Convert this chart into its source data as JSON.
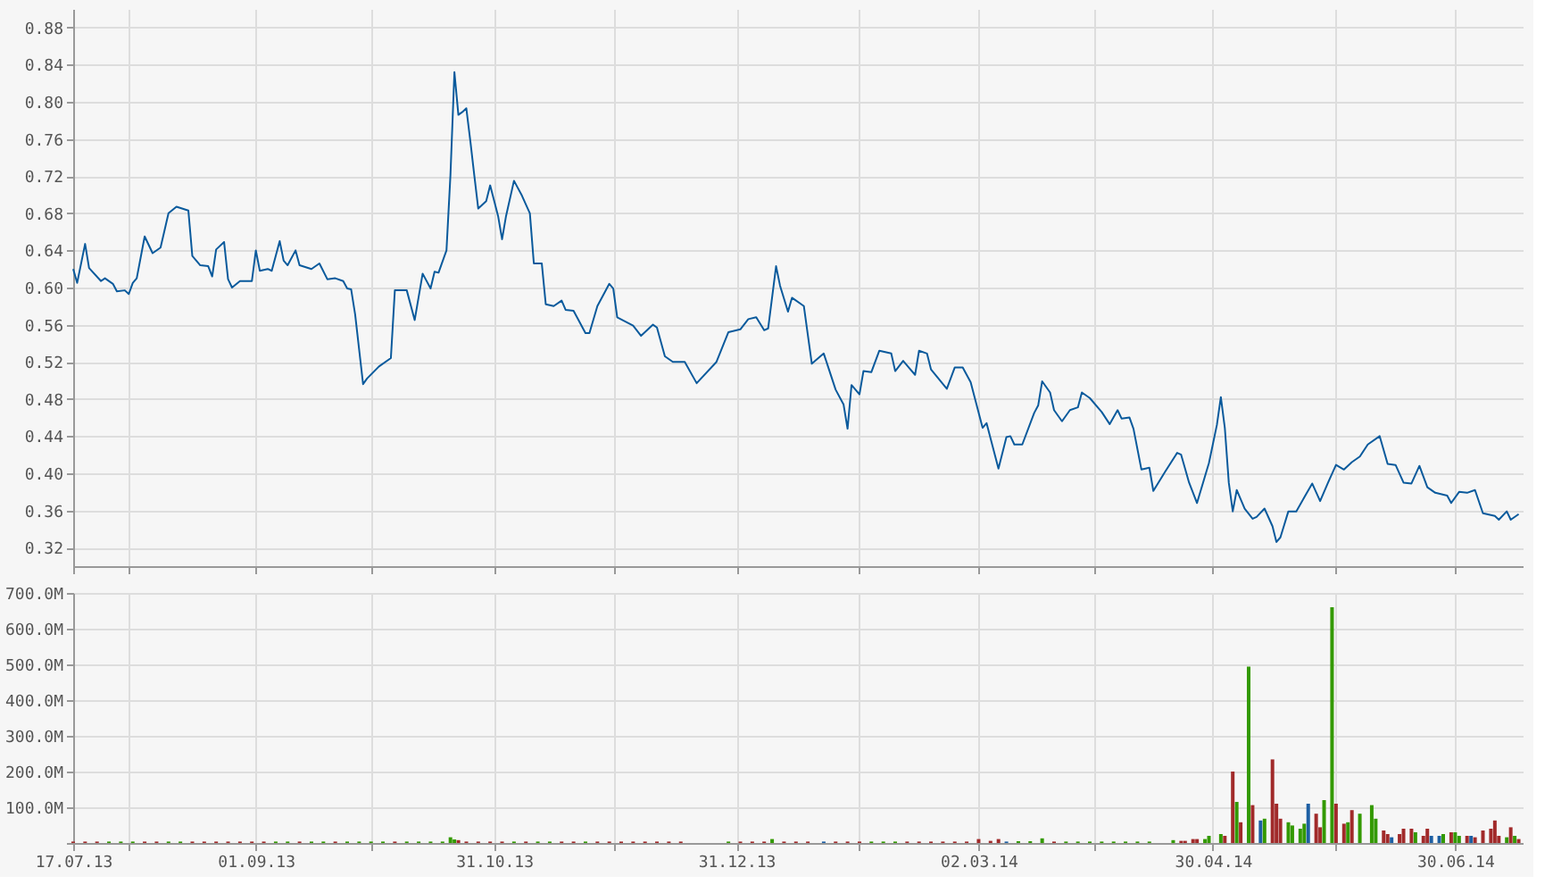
{
  "chart_data": [
    {
      "type": "line",
      "color": "#0a5a9c",
      "x": [
        "2013-07-17",
        "2013-07-18",
        "2013-07-20",
        "2013-07-21",
        "2013-07-24",
        "2013-07-25",
        "2013-07-27",
        "2013-07-28",
        "2013-07-30",
        "2013-07-31",
        "2013-08-01",
        "2013-08-02",
        "2013-08-04",
        "2013-08-06",
        "2013-08-08",
        "2013-08-10",
        "2013-08-12",
        "2013-08-15",
        "2013-08-16",
        "2013-08-18",
        "2013-08-20",
        "2013-08-21",
        "2013-08-22",
        "2013-08-24",
        "2013-08-25",
        "2013-08-26",
        "2013-08-28",
        "2013-08-31",
        "2013-09-01",
        "2013-09-02",
        "2013-09-04",
        "2013-09-05",
        "2013-09-07",
        "2013-09-08",
        "2013-09-09",
        "2013-09-11",
        "2013-09-12",
        "2013-09-15",
        "2013-09-17",
        "2013-09-19",
        "2013-09-21",
        "2013-09-23",
        "2013-09-24",
        "2013-09-25",
        "2013-09-26",
        "2013-09-28",
        "2013-09-29",
        "2013-10-02",
        "2013-10-05",
        "2013-10-06",
        "2013-10-09",
        "2013-10-11",
        "2013-10-13",
        "2013-10-15",
        "2013-10-16",
        "2013-10-17",
        "2013-10-19",
        "2013-10-20",
        "2013-10-21",
        "2013-10-22",
        "2013-10-23",
        "2013-10-24",
        "2013-10-25",
        "2013-10-26",
        "2013-10-27",
        "2013-10-29",
        "2013-10-30",
        "2013-11-01",
        "2013-11-02",
        "2013-11-03",
        "2013-11-05",
        "2013-11-07",
        "2013-11-09",
        "2013-11-10",
        "2013-11-12",
        "2013-11-13",
        "2013-11-15",
        "2013-11-17",
        "2013-11-18",
        "2013-11-20",
        "2013-11-23",
        "2013-11-24",
        "2013-11-26",
        "2013-11-29",
        "2013-11-30",
        "2013-12-01",
        "2013-12-05",
        "2013-12-07",
        "2013-12-10",
        "2013-12-11",
        "2013-12-13",
        "2013-12-15",
        "2013-12-18",
        "2013-12-21",
        "2013-12-26",
        "2013-12-29",
        "2014-01-01",
        "2014-01-03",
        "2014-01-05",
        "2014-01-07",
        "2014-01-08",
        "2014-01-10",
        "2014-01-11",
        "2014-01-13",
        "2014-01-14",
        "2014-01-17",
        "2014-01-19",
        "2014-01-22",
        "2014-01-25",
        "2014-01-27",
        "2014-01-28",
        "2014-01-29",
        "2014-01-31",
        "2014-02-01",
        "2014-02-03",
        "2014-02-05",
        "2014-02-08",
        "2014-02-09",
        "2014-02-11",
        "2014-02-14",
        "2014-02-15",
        "2014-02-17",
        "2014-02-18",
        "2014-02-22",
        "2014-02-24",
        "2014-02-26",
        "2014-02-28",
        "2014-03-03",
        "2014-03-04",
        "2014-03-07",
        "2014-03-09",
        "2014-03-10",
        "2014-03-11",
        "2014-03-13",
        "2014-03-16",
        "2014-03-17",
        "2014-03-18",
        "2014-03-20",
        "2014-03-21",
        "2014-03-23",
        "2014-03-25",
        "2014-03-27",
        "2014-03-28",
        "2014-03-30",
        "2014-04-02",
        "2014-04-04",
        "2014-04-06",
        "2014-04-07",
        "2014-04-09",
        "2014-04-10",
        "2014-04-12",
        "2014-04-14",
        "2014-04-15",
        "2014-04-18",
        "2014-04-21",
        "2014-04-22",
        "2014-04-24",
        "2014-04-26",
        "2014-04-29",
        "2014-05-01",
        "2014-05-02",
        "2014-05-03",
        "2014-05-04",
        "2014-05-05",
        "2014-05-06",
        "2014-05-08",
        "2014-05-10",
        "2014-05-11",
        "2014-05-13",
        "2014-05-15",
        "2014-05-16",
        "2014-05-17",
        "2014-05-19",
        "2014-05-21",
        "2014-05-23",
        "2014-05-25",
        "2014-05-27",
        "2014-05-29",
        "2014-05-31",
        "2014-06-02",
        "2014-06-04",
        "2014-06-06",
        "2014-06-08",
        "2014-06-11",
        "2014-06-13",
        "2014-06-15",
        "2014-06-17",
        "2014-06-19",
        "2014-06-21",
        "2014-06-23",
        "2014-06-25",
        "2014-06-28",
        "2014-06-29",
        "2014-07-01",
        "2014-07-03",
        "2014-07-05",
        "2014-07-07",
        "2014-07-10",
        "2014-07-11",
        "2014-07-13",
        "2014-07-14",
        "2014-07-16"
      ],
      "values": [
        0.62,
        0.605,
        0.647,
        0.621,
        0.607,
        0.61,
        0.604,
        0.596,
        0.597,
        0.593,
        0.605,
        0.61,
        0.655,
        0.637,
        0.643,
        0.68,
        0.687,
        0.683,
        0.634,
        0.624,
        0.623,
        0.612,
        0.641,
        0.649,
        0.609,
        0.6,
        0.607,
        0.607,
        0.64,
        0.618,
        0.62,
        0.618,
        0.65,
        0.629,
        0.624,
        0.64,
        0.624,
        0.62,
        0.626,
        0.609,
        0.61,
        0.607,
        0.599,
        0.598,
        0.571,
        0.496,
        0.502,
        0.515,
        0.524,
        0.597,
        0.597,
        0.565,
        0.615,
        0.599,
        0.617,
        0.616,
        0.64,
        0.721,
        0.832,
        0.786,
        0.789,
        0.793,
        0.758,
        0.721,
        0.685,
        0.693,
        0.71,
        0.677,
        0.652,
        0.677,
        0.715,
        0.699,
        0.68,
        0.626,
        0.626,
        0.582,
        0.58,
        0.586,
        0.576,
        0.575,
        0.551,
        0.551,
        0.58,
        0.604,
        0.599,
        0.568,
        0.559,
        0.548,
        0.56,
        0.557,
        0.526,
        0.52,
        0.52,
        0.497,
        0.52,
        0.552,
        0.555,
        0.566,
        0.568,
        0.554,
        0.556,
        0.623,
        0.602,
        0.574,
        0.589,
        0.58,
        0.518,
        0.529,
        0.49,
        0.474,
        0.448,
        0.495,
        0.485,
        0.51,
        0.509,
        0.532,
        0.529,
        0.51,
        0.521,
        0.506,
        0.532,
        0.529,
        0.512,
        0.491,
        0.514,
        0.514,
        0.498,
        0.449,
        0.454,
        0.405,
        0.439,
        0.44,
        0.431,
        0.431,
        0.465,
        0.473,
        0.499,
        0.487,
        0.468,
        0.456,
        0.468,
        0.471,
        0.487,
        0.481,
        0.466,
        0.453,
        0.468,
        0.459,
        0.46,
        0.448,
        0.404,
        0.406,
        0.381,
        0.402,
        0.422,
        0.42,
        0.39,
        0.368,
        0.411,
        0.452,
        0.482,
        0.449,
        0.39,
        0.359,
        0.382,
        0.362,
        0.351,
        0.353,
        0.362,
        0.343,
        0.326,
        0.331,
        0.359,
        0.359,
        0.374,
        0.389,
        0.37,
        0.39,
        0.409,
        0.404,
        0.412,
        0.418,
        0.431,
        0.44,
        0.41,
        0.409,
        0.39,
        0.389,
        0.408,
        0.385,
        0.379,
        0.376,
        0.368,
        0.38,
        0.379,
        0.382,
        0.357,
        0.354,
        0.35,
        0.359,
        0.35,
        0.356
      ],
      "xlim": [
        "2013-07-17",
        "2014-07-17"
      ],
      "xticks": [
        {
          "value": "2013-07-17",
          "label": null
        },
        {
          "value": "2013-07-31",
          "label": null
        },
        {
          "value": "2013-09-01",
          "label": null
        },
        {
          "value": "2013-09-30",
          "label": null
        },
        {
          "value": "2013-10-31",
          "label": null
        },
        {
          "value": "2013-11-30",
          "label": null
        },
        {
          "value": "2013-12-31",
          "label": null
        },
        {
          "value": "2014-01-31",
          "label": null
        },
        {
          "value": "2014-03-02",
          "label": null
        },
        {
          "value": "2014-03-31",
          "label": null
        },
        {
          "value": "2014-04-30",
          "label": null
        },
        {
          "value": "2014-05-31",
          "label": null
        },
        {
          "value": "2014-06-30",
          "label": null
        }
      ],
      "ylim": [
        0.3,
        0.9
      ],
      "yticks": [
        {
          "value": 0.32,
          "label": "0.32"
        },
        {
          "value": 0.36,
          "label": "0.36"
        },
        {
          "value": 0.4,
          "label": "0.40"
        },
        {
          "value": 0.44,
          "label": "0.44"
        },
        {
          "value": 0.48,
          "label": "0.48"
        },
        {
          "value": 0.52,
          "label": "0.52"
        },
        {
          "value": 0.56,
          "label": "0.56"
        },
        {
          "value": 0.6,
          "label": "0.60"
        },
        {
          "value": 0.64,
          "label": "0.64"
        },
        {
          "value": 0.68,
          "label": "0.68"
        },
        {
          "value": 0.72,
          "label": "0.72"
        },
        {
          "value": 0.76,
          "label": "0.76"
        },
        {
          "value": 0.8,
          "label": "0.80"
        },
        {
          "value": 0.84,
          "label": "0.84"
        },
        {
          "value": 0.88,
          "label": "0.88"
        }
      ],
      "tick_labels": "y",
      "grid": true
    },
    {
      "type": "bar",
      "x": [
        "2013-07-17",
        "2013-07-20",
        "2013-07-23",
        "2013-07-26",
        "2013-07-29",
        "2013-08-01",
        "2013-08-04",
        "2013-08-07",
        "2013-08-10",
        "2013-08-13",
        "2013-08-16",
        "2013-08-19",
        "2013-08-22",
        "2013-08-25",
        "2013-08-28",
        "2013-08-31",
        "2013-09-03",
        "2013-09-06",
        "2013-09-09",
        "2013-09-12",
        "2013-09-15",
        "2013-09-18",
        "2013-09-21",
        "2013-09-24",
        "2013-09-27",
        "2013-09-30",
        "2013-10-03",
        "2013-10-06",
        "2013-10-09",
        "2013-10-12",
        "2013-10-15",
        "2013-10-18",
        "2013-10-20",
        "2013-10-21",
        "2013-10-22",
        "2013-10-24",
        "2013-10-27",
        "2013-10-30",
        "2013-11-02",
        "2013-11-05",
        "2013-11-08",
        "2013-11-11",
        "2013-11-14",
        "2013-11-17",
        "2013-11-20",
        "2013-11-23",
        "2013-11-26",
        "2013-11-29",
        "2013-12-02",
        "2013-12-05",
        "2013-12-08",
        "2013-12-11",
        "2013-12-14",
        "2013-12-17",
        "2013-12-29",
        "2014-01-01",
        "2014-01-04",
        "2014-01-07",
        "2014-01-09",
        "2014-01-12",
        "2014-01-15",
        "2014-01-18",
        "2014-01-22",
        "2014-01-25",
        "2014-01-28",
        "2014-01-31",
        "2014-02-03",
        "2014-02-06",
        "2014-02-09",
        "2014-02-12",
        "2014-02-15",
        "2014-02-18",
        "2014-02-21",
        "2014-02-24",
        "2014-02-27",
        "2014-03-02",
        "2014-03-05",
        "2014-03-07",
        "2014-03-09",
        "2014-03-12",
        "2014-03-15",
        "2014-03-18",
        "2014-03-21",
        "2014-03-24",
        "2014-03-27",
        "2014-03-30",
        "2014-04-02",
        "2014-04-05",
        "2014-04-08",
        "2014-04-11",
        "2014-04-14",
        "2014-04-20",
        "2014-04-22",
        "2014-04-23",
        "2014-04-25",
        "2014-04-26",
        "2014-04-28",
        "2014-04-29",
        "2014-05-02",
        "2014-05-03",
        "2014-05-05",
        "2014-05-06",
        "2014-05-07",
        "2014-05-09",
        "2014-05-10",
        "2014-05-12",
        "2014-05-13",
        "2014-05-15",
        "2014-05-16",
        "2014-05-17",
        "2014-05-19",
        "2014-05-20",
        "2014-05-22",
        "2014-05-23",
        "2014-05-24",
        "2014-05-26",
        "2014-05-27",
        "2014-05-28",
        "2014-05-30",
        "2014-05-31",
        "2014-06-02",
        "2014-06-03",
        "2014-06-04",
        "2014-06-06",
        "2014-06-09",
        "2014-06-10",
        "2014-06-12",
        "2014-06-13",
        "2014-06-14",
        "2014-06-16",
        "2014-06-17",
        "2014-06-19",
        "2014-06-20",
        "2014-06-22",
        "2014-06-23",
        "2014-06-24",
        "2014-06-26",
        "2014-06-27",
        "2014-06-29",
        "2014-06-30",
        "2014-07-01",
        "2014-07-03",
        "2014-07-04",
        "2014-07-05",
        "2014-07-07",
        "2014-07-09",
        "2014-07-10",
        "2014-07-11",
        "2014-07-13",
        "2014-07-14",
        "2014-07-15",
        "2014-07-16"
      ],
      "values": [
        4000000,
        4000000,
        4000000,
        4000000,
        4000000,
        4000000,
        4000000,
        4000000,
        4000000,
        4000000,
        4000000,
        4000000,
        4000000,
        4000000,
        4000000,
        4000000,
        4000000,
        4000000,
        4000000,
        4000000,
        4000000,
        4000000,
        4000000,
        4000000,
        4000000,
        4000000,
        4000000,
        4000000,
        4000000,
        4000000,
        4000000,
        4000000,
        16000000,
        10000000,
        8000000,
        4000000,
        4000000,
        4000000,
        4000000,
        4000000,
        4000000,
        4000000,
        4000000,
        4000000,
        4000000,
        4000000,
        4000000,
        4000000,
        4000000,
        4000000,
        4000000,
        4000000,
        4000000,
        4000000,
        4000000,
        4000000,
        4000000,
        4000000,
        11000000,
        4000000,
        4000000,
        4000000,
        4000000,
        4000000,
        4000000,
        4000000,
        4000000,
        4000000,
        4000000,
        4000000,
        4000000,
        4000000,
        4000000,
        4000000,
        4000000,
        11000000,
        6000000,
        11000000,
        4000000,
        5000000,
        5000000,
        13000000,
        4000000,
        4000000,
        4000000,
        4000000,
        4000000,
        4000000,
        4000000,
        4000000,
        4000000,
        8000000,
        6000000,
        6000000,
        11000000,
        11000000,
        11000000,
        20000000,
        25000000,
        20000000,
        200000000,
        115000000,
        58000000,
        494000000,
        106000000,
        63000000,
        68000000,
        234000000,
        110000000,
        68000000,
        58000000,
        49000000,
        40000000,
        54000000,
        110000000,
        82000000,
        44000000,
        120000000,
        660000000,
        110000000,
        54000000,
        58000000,
        92000000,
        82000000,
        106000000,
        68000000,
        35000000,
        25000000,
        16000000,
        25000000,
        40000000,
        40000000,
        30000000,
        20000000,
        40000000,
        20000000,
        20000000,
        25000000,
        30000000,
        30000000,
        20000000,
        20000000,
        20000000,
        16000000,
        35000000,
        40000000,
        63000000,
        20000000,
        16000000,
        44000000,
        20000000,
        11000000
      ],
      "colors": [
        "#a12a2a",
        "#a12a2a",
        "#a12a2a",
        "#339900",
        "#339900",
        "#339900",
        "#a12a2a",
        "#a12a2a",
        "#339900",
        "#339900",
        "#a12a2a",
        "#a12a2a",
        "#a12a2a",
        "#a12a2a",
        "#a12a2a",
        "#a12a2a",
        "#a12a2a",
        "#339900",
        "#339900",
        "#a12a2a",
        "#339900",
        "#339900",
        "#a12a2a",
        "#339900",
        "#339900",
        "#339900",
        "#339900",
        "#a12a2a",
        "#339900",
        "#339900",
        "#339900",
        "#339900",
        "#339900",
        "#339900",
        "#a12a2a",
        "#a12a2a",
        "#a12a2a",
        "#a12a2a",
        "#a12a2a",
        "#339900",
        "#a12a2a",
        "#339900",
        "#339900",
        "#a12a2a",
        "#a12a2a",
        "#339900",
        "#a12a2a",
        "#a12a2a",
        "#a12a2a",
        "#a12a2a",
        "#a12a2a",
        "#a12a2a",
        "#a12a2a",
        "#a12a2a",
        "#339900",
        "#a12a2a",
        "#a12a2a",
        "#a12a2a",
        "#339900",
        "#a12a2a",
        "#a12a2a",
        "#a12a2a",
        "#1d5fa3",
        "#a12a2a",
        "#a12a2a",
        "#a12a2a",
        "#339900",
        "#339900",
        "#339900",
        "#a12a2a",
        "#a12a2a",
        "#a12a2a",
        "#a12a2a",
        "#a12a2a",
        "#a12a2a",
        "#a12a2a",
        "#a12a2a",
        "#a12a2a",
        "#1d5fa3",
        "#339900",
        "#339900",
        "#339900",
        "#a12a2a",
        "#339900",
        "#339900",
        "#339900",
        "#339900",
        "#339900",
        "#339900",
        "#339900",
        "#339900",
        "#339900",
        "#a12a2a",
        "#a12a2a",
        "#a12a2a",
        "#a12a2a",
        "#339900",
        "#339900",
        "#339900",
        "#a12a2a",
        "#a12a2a",
        "#339900",
        "#a12a2a",
        "#339900",
        "#a12a2a",
        "#1d5fa3",
        "#339900",
        "#a12a2a",
        "#a12a2a",
        "#a12a2a",
        "#339900",
        "#339900",
        "#339900",
        "#339900",
        "#1d5fa3",
        "#a12a2a",
        "#a12a2a",
        "#339900",
        "#339900",
        "#a12a2a",
        "#a12a2a",
        "#339900",
        "#a12a2a",
        "#339900",
        "#339900",
        "#339900",
        "#a12a2a",
        "#a12a2a",
        "#1d5fa3",
        "#a12a2a",
        "#a12a2a",
        "#a12a2a",
        "#339900",
        "#a12a2a",
        "#a12a2a",
        "#1d5fa3",
        "#1d5fa3",
        "#339900",
        "#a12a2a",
        "#339900",
        "#339900",
        "#a12a2a",
        "#1d5fa3",
        "#a12a2a",
        "#a12a2a",
        "#a12a2a",
        "#a12a2a",
        "#a12a2a",
        "#339900",
        "#a12a2a",
        "#339900",
        "#a12a2a"
      ],
      "xlim": [
        "2013-07-17",
        "2014-07-17"
      ],
      "xticks": [
        {
          "value": "2013-07-17",
          "label": "17.07.13"
        },
        {
          "value": "2013-07-31",
          "label": null
        },
        {
          "value": "2013-09-01",
          "label": "01.09.13"
        },
        {
          "value": "2013-09-30",
          "label": null
        },
        {
          "value": "2013-10-31",
          "label": "31.10.13"
        },
        {
          "value": "2013-11-30",
          "label": null
        },
        {
          "value": "2013-12-31",
          "label": "31.12.13"
        },
        {
          "value": "2014-01-31",
          "label": null
        },
        {
          "value": "2014-03-02",
          "label": "02.03.14"
        },
        {
          "value": "2014-03-31",
          "label": null
        },
        {
          "value": "2014-04-30",
          "label": "30.04.14"
        },
        {
          "value": "2014-05-31",
          "label": null
        },
        {
          "value": "2014-06-30",
          "label": "30.06.14"
        }
      ],
      "ylim": [
        0,
        700000000
      ],
      "yticks": [
        {
          "value": 0,
          "label": null
        },
        {
          "value": 100000000,
          "label": "100.0M"
        },
        {
          "value": 200000000,
          "label": "200.0M"
        },
        {
          "value": 300000000,
          "label": "300.0M"
        },
        {
          "value": 400000000,
          "label": "400.0M"
        },
        {
          "value": 500000000,
          "label": "500.0M"
        },
        {
          "value": 600000000,
          "label": "600.0M"
        },
        {
          "value": 700000000,
          "label": "700.0M"
        }
      ],
      "grid": true
    }
  ]
}
